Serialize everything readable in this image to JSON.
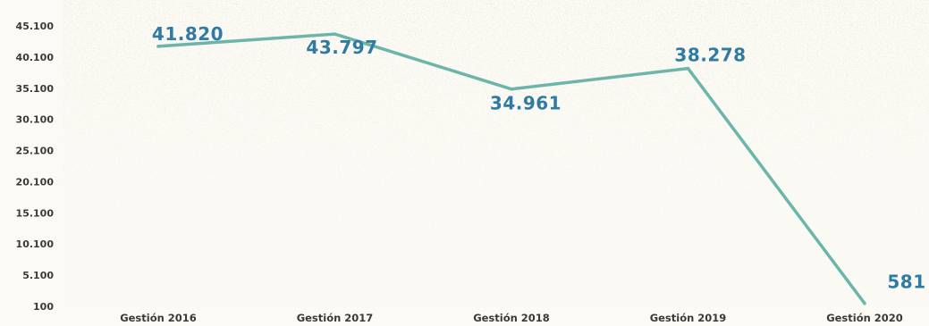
{
  "chart_data": {
    "type": "line",
    "categories": [
      "Gestión 2016",
      "Gestión 2017",
      "Gestión 2018",
      "Gestión 2019",
      "Gestión 2020"
    ],
    "values": [
      41820,
      43797,
      34961,
      38278,
      581
    ],
    "data_labels": [
      "41.820",
      "43.797",
      "34.961",
      "38.278",
      "581"
    ],
    "y_ticks": [
      100,
      5100,
      10100,
      15100,
      20100,
      25100,
      30100,
      35100,
      40100,
      45100
    ],
    "y_tick_labels": [
      "100",
      "5.100",
      "10.100",
      "15.100",
      "20.100",
      "25.100",
      "30.100",
      "35.100",
      "40.100",
      "45.100"
    ],
    "ylim": [
      100,
      45100
    ],
    "grid": false,
    "legend": "none",
    "line_color": "#6db5a8",
    "label_color": "#2f7ba4",
    "background": "textured paper"
  }
}
